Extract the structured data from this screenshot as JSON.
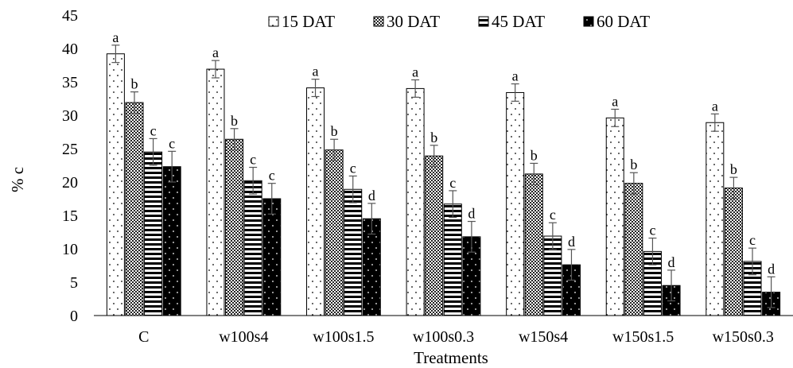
{
  "chart_data": {
    "type": "bar",
    "title": "",
    "xlabel": "Treatments",
    "ylabel": "% c",
    "ylim": [
      0,
      45
    ],
    "yticks": [
      0,
      5,
      10,
      15,
      20,
      25,
      30,
      35,
      40,
      45
    ],
    "grid": false,
    "legend_position": "top-right",
    "categories": [
      "C",
      "w100s4",
      "w100s1.5",
      "w100s0.3",
      "w150s4",
      "w150s1.5",
      "w150s0.3"
    ],
    "series": [
      {
        "name": "15 DAT",
        "pattern": "dots",
        "values": [
          39.2,
          36.9,
          34.1,
          34.0,
          33.4,
          29.6,
          28.9
        ],
        "errors": [
          1.3,
          1.3,
          1.3,
          1.3,
          1.3,
          1.3,
          1.3
        ],
        "letters": [
          "a",
          "a",
          "a",
          "a",
          "a",
          "a",
          "a"
        ]
      },
      {
        "name": "30 DAT",
        "pattern": "checker",
        "values": [
          31.9,
          26.4,
          24.8,
          23.9,
          21.2,
          19.8,
          19.1
        ],
        "errors": [
          1.6,
          1.6,
          1.6,
          1.6,
          1.6,
          1.6,
          1.6
        ],
        "letters": [
          "b",
          "b",
          "b",
          "b",
          "b",
          "b",
          "b"
        ]
      },
      {
        "name": "45 DAT",
        "pattern": "hstripes",
        "values": [
          24.5,
          20.2,
          18.9,
          16.7,
          11.9,
          9.6,
          8.1
        ],
        "errors": [
          2.0,
          2.0,
          2.0,
          2.0,
          2.0,
          2.0,
          2.0
        ],
        "letters": [
          "c",
          "c",
          "c",
          "c",
          "c",
          "c",
          "c"
        ]
      },
      {
        "name": "60 DAT",
        "pattern": "solid-dots",
        "values": [
          22.3,
          17.5,
          14.5,
          11.8,
          7.6,
          4.5,
          3.5
        ],
        "errors": [
          2.3,
          2.3,
          2.3,
          2.3,
          2.3,
          2.3,
          2.3
        ],
        "letters": [
          "c",
          "c",
          "d",
          "d",
          "d",
          "d",
          "d"
        ]
      }
    ]
  }
}
